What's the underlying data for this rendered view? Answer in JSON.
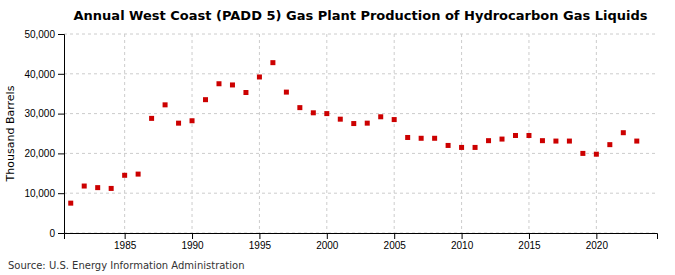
{
  "chart_data": {
    "type": "scatter",
    "title": "Annual West Coast (PADD 5) Gas Plant Production of Hydrocarbon Gas Liquids",
    "y_label": "Thousand Barrels",
    "annotations": [
      "Source: U.S. Energy Information Administration"
    ],
    "x": [
      1981,
      1982,
      1983,
      1984,
      1985,
      1986,
      1987,
      1988,
      1989,
      1990,
      1991,
      1992,
      1993,
      1994,
      1995,
      1996,
      1997,
      1998,
      1999,
      2000,
      2001,
      2002,
      2003,
      2004,
      2005,
      2006,
      2007,
      2008,
      2009,
      2010,
      2011,
      2012,
      2013,
      2014,
      2015,
      2016,
      2017,
      2018,
      2019,
      2020,
      2021,
      2022,
      2023
    ],
    "values": [
      7500,
      11800,
      11400,
      11200,
      14500,
      14800,
      28800,
      32200,
      27600,
      28200,
      33500,
      37500,
      37200,
      35300,
      39200,
      42800,
      35400,
      31500,
      30200,
      30000,
      28600,
      27500,
      27600,
      29200,
      28500,
      24000,
      23800,
      23800,
      22000,
      21500,
      21500,
      23200,
      23600,
      24500,
      24500,
      23200,
      23100,
      23100,
      20000,
      19800,
      22200,
      25200,
      23100
    ],
    "color": "#cc0000",
    "marker": "square",
    "xlim": [
      1980.5,
      2024.5
    ],
    "xticks": [
      1985,
      1990,
      1995,
      2000,
      2005,
      2010,
      2015,
      2020
    ],
    "ylim": [
      0,
      50000
    ],
    "yticks": [
      0,
      {
        "value": 10000,
        "label": "10,000"
      },
      {
        "value": 20000,
        "label": "20,000"
      },
      {
        "value": 30000,
        "label": "30,000"
      },
      {
        "value": 40000,
        "label": "40,000"
      },
      {
        "value": 50000,
        "label": "50,000"
      }
    ],
    "grid": true
  }
}
